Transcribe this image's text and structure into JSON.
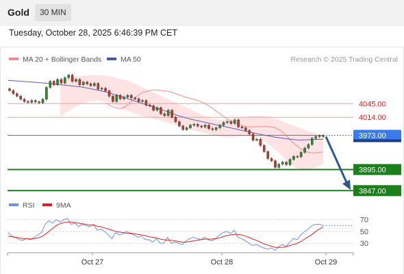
{
  "header": {
    "title": "Gold",
    "timeframe": "30 MIN"
  },
  "datetime": "Tuesday, October 28, 2025 6:46:39 PM CET",
  "colors": {
    "bollinger": "#f88a8a",
    "band_fill": "#fde3e3",
    "ma50": "#5b5fa6",
    "level_red": "#f59aa0",
    "level_blue": "#3a7bea",
    "level_green": "#1b7f1b",
    "candle_up": "#2e8b2e",
    "candle_down": "#c0392b",
    "rsi": "#6f8fe8",
    "rsi_ma": "#e02020",
    "arrow": "#2b5797"
  },
  "chart_data": [
    {
      "type": "line",
      "name": "price",
      "legend": [
        {
          "label": "MA 20 + Bollinger Bands",
          "color": "#f88a8a"
        },
        {
          "label": "MA 50",
          "color": "#3f5aa8"
        }
      ],
      "attribution": "Research © 2025 Trading Central",
      "x_labels": [
        "Oct 27",
        "Oct 28",
        "Oct 29"
      ],
      "levels": [
        {
          "value": 4045.0,
          "label": "4045.00",
          "kind": "resistance"
        },
        {
          "value": 4014.0,
          "label": "4014.00",
          "kind": "resistance"
        },
        {
          "value": 3973.0,
          "label": "3973.00",
          "kind": "current"
        },
        {
          "value": 3895.0,
          "label": "3895.00",
          "kind": "support"
        },
        {
          "value": 3847.0,
          "label": "3847.00",
          "kind": "support"
        }
      ],
      "ylim": [
        3835,
        4125
      ],
      "close": [
        4075,
        4068,
        4062,
        4055,
        4050,
        4048,
        4052,
        4049,
        4047,
        4055,
        4082,
        4096,
        4088,
        4100,
        4092,
        4104,
        4110,
        4096,
        4100,
        4088,
        4094,
        4090,
        4086,
        4091,
        4078,
        4080,
        4074,
        4062,
        4050,
        4064,
        4056,
        4060,
        4064,
        4058,
        4056,
        4050,
        4052,
        4042,
        4040,
        4030,
        4036,
        4022,
        4018,
        4030,
        4014,
        4004,
        3994,
        3986,
        3990,
        3996,
        3998,
        3994,
        3992,
        3996,
        3988,
        3986,
        3990,
        3996,
        4002,
        4004,
        4000,
        4008,
        3992,
        3990,
        3984,
        3976,
        3962,
        3964,
        3950,
        3936,
        3920,
        3915,
        3900,
        3907,
        3912,
        3906,
        3918,
        3925,
        3924,
        3934,
        3944,
        3952,
        3966,
        3970,
        3972,
        3970
      ],
      "ma20": [
        4047,
        4042,
        4038,
        4035,
        4034,
        4036,
        4042,
        4050,
        4058,
        4065,
        4070,
        4073,
        4075,
        4076,
        4076,
        4075,
        4074,
        4073,
        4071,
        4068,
        4065,
        4062,
        4059,
        4057,
        4055,
        4052,
        4049,
        4045,
        4040,
        4034,
        4028,
        4022,
        4016,
        4010,
        4005,
        4001,
        3998,
        3995,
        3993,
        3992,
        3992,
        3993,
        3993,
        3993,
        3993,
        3992,
        3990,
        3986,
        3980,
        3972,
        3963,
        3955,
        3948,
        3942,
        3937,
        3934,
        3933,
        3933,
        3934,
        3935
      ],
      "ma20_start": 26,
      "upper_band": [
        4098,
        4104,
        4108,
        4110,
        4110,
        4108,
        4104,
        4098,
        4090,
        4080,
        4070,
        4060,
        4050,
        4040,
        4030,
        4020,
        4012,
        4008,
        4010,
        4014,
        4016,
        4018,
        4016,
        4010,
        4002,
        3994,
        3986,
        3978,
        3968
      ],
      "lower_band": [
        4016,
        4030,
        4042,
        4050,
        4052,
        4048,
        4040,
        4030,
        4022,
        4015,
        4010,
        4004,
        3998,
        3992,
        3986,
        3980,
        3975,
        3970,
        3968,
        3970,
        3972,
        3968,
        3956,
        3938,
        3918,
        3900,
        3894,
        3898,
        3908
      ],
      "ma50": [
        4098,
        4096,
        4094,
        4092,
        4089,
        4086,
        4083,
        4078,
        4072,
        4064,
        4055,
        4046,
        4037,
        4028,
        4018,
        4010,
        4004,
        3998,
        3992,
        3986,
        3980,
        3974,
        3969,
        3965,
        3962,
        3963,
        3964
      ],
      "forecast": {
        "from": 3973.0,
        "to": 3847.0
      }
    },
    {
      "type": "line",
      "name": "rsi",
      "legend": [
        {
          "label": "RSI",
          "color": "#6f8fe8"
        },
        {
          "label": "9MA",
          "color": "#e02020"
        }
      ],
      "yticks": [
        "70",
        "50",
        "30"
      ],
      "ylim": [
        15,
        80
      ],
      "rsi": [
        48,
        42,
        40,
        36,
        35,
        38,
        36,
        40,
        44,
        48,
        62,
        68,
        64,
        70,
        66,
        70,
        72,
        62,
        64,
        58,
        62,
        60,
        58,
        62,
        52,
        54,
        50,
        44,
        38,
        48,
        44,
        46,
        50,
        46,
        44,
        40,
        42,
        36,
        36,
        32,
        38,
        30,
        30,
        40,
        30,
        32,
        30,
        28,
        34,
        38,
        40,
        38,
        36,
        40,
        36,
        34,
        38,
        44,
        48,
        50,
        46,
        52,
        40,
        38,
        34,
        30,
        26,
        28,
        24,
        22,
        20,
        22,
        18,
        24,
        28,
        24,
        32,
        38,
        36,
        44,
        50,
        54,
        60,
        62,
        62,
        60
      ],
      "rsi_ma": [
        42,
        41,
        40,
        39,
        38,
        38,
        37,
        38,
        39,
        41,
        45,
        50,
        55,
        60,
        63,
        65,
        66,
        66,
        65,
        64,
        63,
        62,
        61,
        61,
        59,
        58,
        56,
        54,
        52,
        50,
        49,
        48,
        47,
        47,
        46,
        45,
        44,
        43,
        41,
        40,
        39,
        37,
        36,
        35,
        35,
        34,
        33,
        32,
        32,
        33,
        34,
        35,
        36,
        37,
        37,
        37,
        38,
        39,
        41,
        43,
        44,
        45,
        45,
        44,
        42,
        40,
        37,
        35,
        32,
        29,
        27,
        25,
        23,
        23,
        23,
        24,
        26,
        28,
        30,
        33,
        37,
        41,
        45,
        50,
        54,
        58
      ]
    }
  ]
}
